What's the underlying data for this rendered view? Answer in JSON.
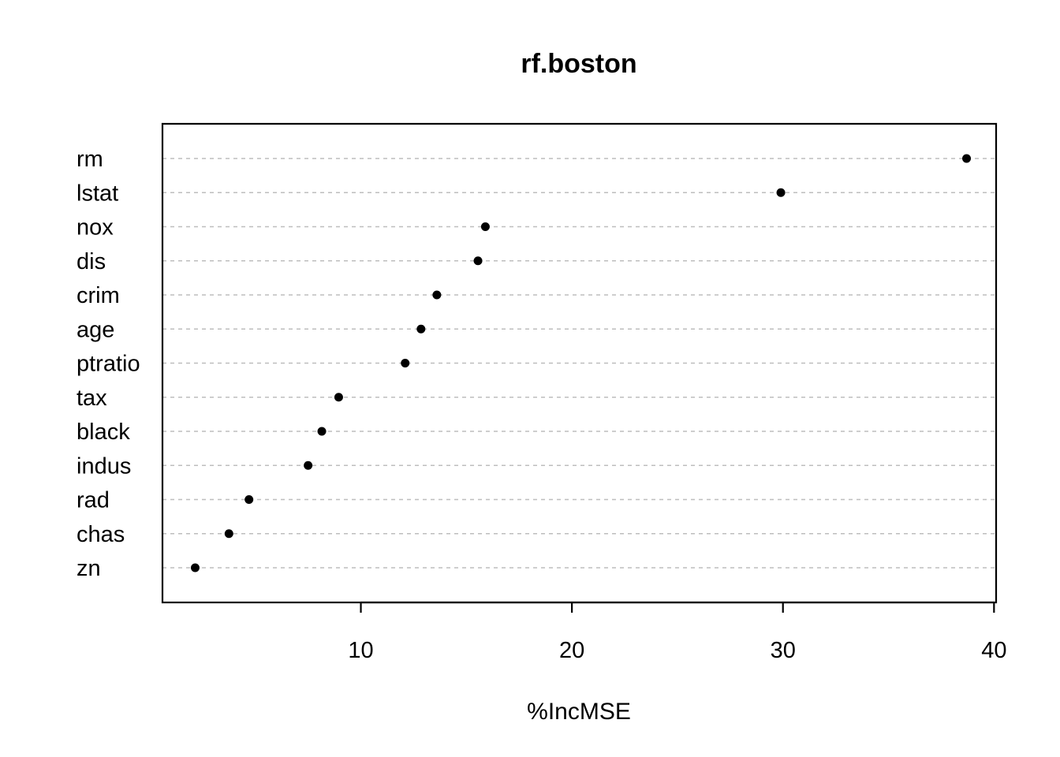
{
  "chart_data": {
    "type": "scatter",
    "variant": "dotchart",
    "title": "rf.boston",
    "xlabel": "%IncMSE",
    "ylabel": "",
    "xlim": [
      0.6,
      40.1
    ],
    "xticks": [
      10,
      20,
      30,
      40
    ],
    "grid": true,
    "categories": [
      "rm",
      "lstat",
      "nox",
      "dis",
      "crim",
      "age",
      "ptratio",
      "tax",
      "black",
      "indus",
      "rad",
      "chas",
      "zn"
    ],
    "values": [
      38.7,
      29.9,
      15.9,
      15.55,
      13.6,
      12.85,
      12.1,
      8.95,
      8.15,
      7.5,
      4.7,
      3.75,
      2.15
    ]
  }
}
